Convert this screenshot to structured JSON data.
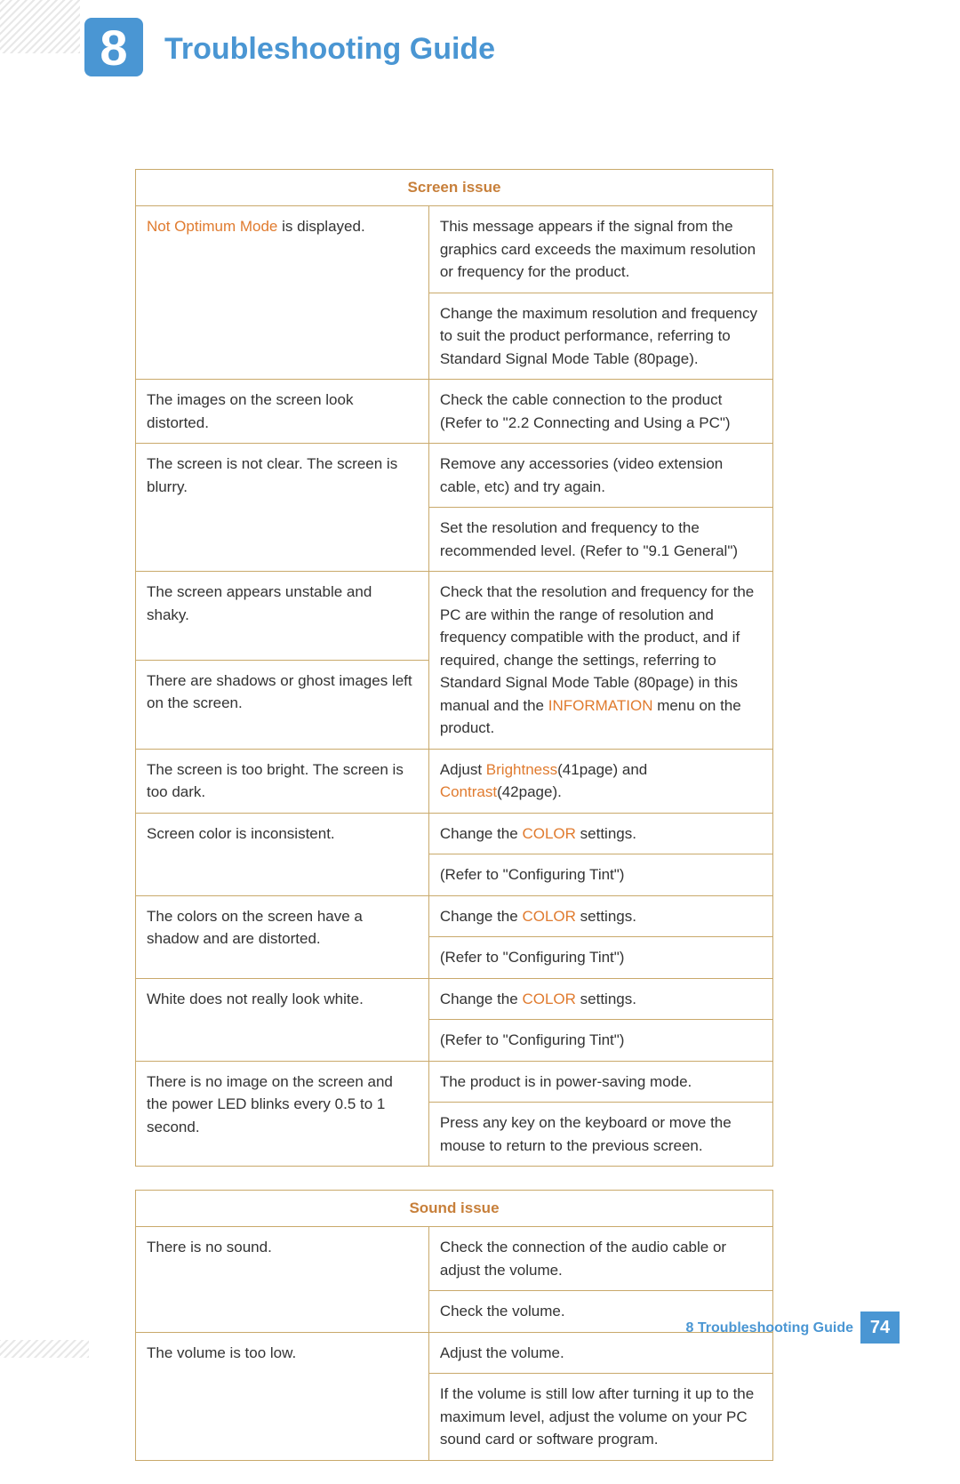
{
  "chapter": {
    "number": "8",
    "title": "Troubleshooting Guide"
  },
  "colors": {
    "brand_blue": "#4a96d3",
    "accent_orange": "#e07b2f",
    "heading_brown": "#c77f3a",
    "border": "#c9a96b"
  },
  "screen_issue": {
    "heading": "Screen issue",
    "rows": [
      {
        "left": [
          "Not Optimum Mode",
          " is displayed."
        ],
        "left_orange_first": true,
        "right": "This message appears if the signal from the graphics card exceeds the maximum resolution or frequency for the product."
      },
      {
        "left": null,
        "right": "Change the maximum resolution and frequency to suit the product performance, referring to Standard Signal Mode Table (80page)."
      },
      {
        "left": "The images on the screen look distorted.",
        "right": "Check the cable connection to the product (Refer to \"2.2 Connecting and Using a PC\")"
      },
      {
        "left": "The screen is not clear. The screen is blurry.",
        "right": "Remove any accessories (video extension cable, etc) and try again."
      },
      {
        "left": null,
        "right": "Set the resolution and frequency to the recommended level. (Refer to \"9.1 General\")"
      },
      {
        "left": "The screen appears unstable and shaky.",
        "right_parts": [
          "Check that the resolution and frequency for the PC are within the range of resolution and frequency compatible with the product, and if required, change the settings, referring to Standard Signal Mode Table (80page) in this manual and the ",
          "INFORMATION",
          " menu on the product."
        ]
      },
      {
        "left": "There are shadows or ghost images left on the screen.",
        "right": null
      },
      {
        "left": "The screen is too bright. The screen is too dark.",
        "right_parts": [
          "Adjust ",
          "Brightness",
          "(41page) and ",
          "Contrast",
          "(42page)."
        ]
      },
      {
        "left": "Screen color is inconsistent.",
        "right_parts": [
          "Change the ",
          "COLOR",
          " settings."
        ]
      },
      {
        "left": null,
        "right": "(Refer to \"Configuring Tint\")"
      },
      {
        "left": "The colors on the screen have a shadow and are distorted.",
        "right_parts": [
          "Change the ",
          "COLOR",
          " settings."
        ]
      },
      {
        "left": null,
        "right": "(Refer to \"Configuring Tint\")"
      },
      {
        "left": "White does not really look white.",
        "right_parts": [
          "Change the ",
          "COLOR",
          " settings."
        ]
      },
      {
        "left": null,
        "right": "(Refer to \"Configuring Tint\")"
      },
      {
        "left": "There is no image on the screen and the power LED blinks every 0.5 to 1 second.",
        "right": "The product is in power-saving mode."
      },
      {
        "left": null,
        "right": "Press any key on the keyboard or move the mouse to return to the previous screen."
      }
    ]
  },
  "sound_issue": {
    "heading": "Sound issue",
    "rows": [
      {
        "left": "There is no sound.",
        "right": "Check the connection of the audio cable or adjust the volume."
      },
      {
        "left": null,
        "right": "Check the volume."
      },
      {
        "left": "The volume is too low.",
        "right": "Adjust the volume."
      },
      {
        "left": null,
        "right": "If the volume is still low after turning it up to the maximum level, adjust the volume on your PC sound card or software program."
      }
    ]
  },
  "footer": {
    "text": "8 Troubleshooting Guide",
    "page_number": "74"
  }
}
